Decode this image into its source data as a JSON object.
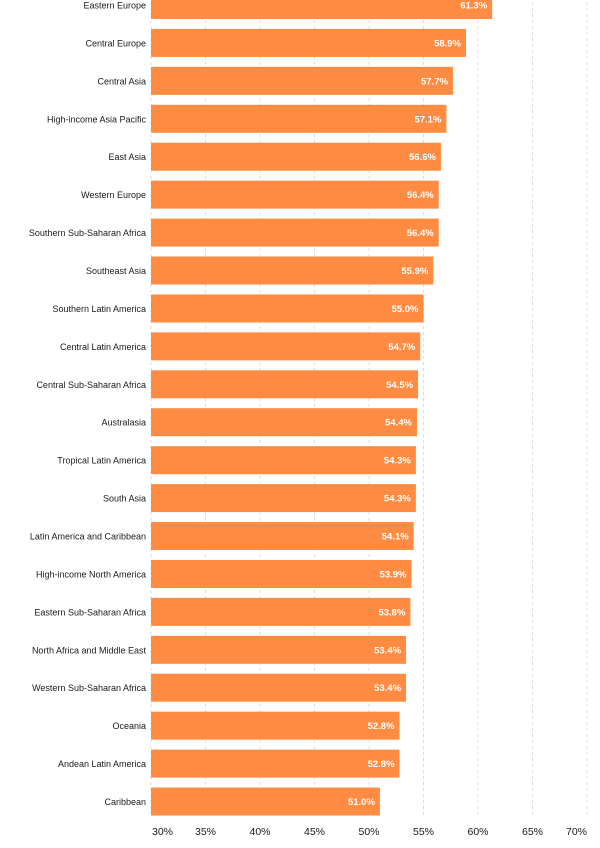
{
  "chart_data": {
    "type": "bar",
    "orientation": "horizontal",
    "categories": [
      "Eastern Europe",
      "Central Europe",
      "Central Asia",
      "High-income Asia Pacific",
      "East Asia",
      "Western Europe",
      "Southern Sub-Saharan Africa",
      "Southeast Asia",
      "Southern Latin America",
      "Central Latin America",
      "Central Sub-Saharan Africa",
      "Australasia",
      "Tropical Latin America",
      "South Asia",
      "Latin America and Caribbean",
      "High-income North America",
      "Eastern Sub-Saharan Africa",
      "North Africa and Middle East",
      "Western Sub-Saharan Africa",
      "Oceania",
      "Andean Latin America",
      "Caribbean"
    ],
    "values": [
      61.3,
      58.9,
      57.7,
      57.1,
      56.6,
      56.4,
      56.4,
      55.9,
      55.0,
      54.7,
      54.5,
      54.4,
      54.3,
      54.3,
      54.1,
      53.9,
      53.8,
      53.4,
      53.4,
      52.8,
      52.8,
      51.0
    ],
    "value_labels": [
      "61.3%",
      "58.9%",
      "57.7%",
      "57.1%",
      "56.6%",
      "56.4%",
      "56.4%",
      "55.9%",
      "55.0%",
      "54.7%",
      "54.5%",
      "54.4%",
      "54.3%",
      "54.3%",
      "54.1%",
      "53.9%",
      "53.8%",
      "53.4%",
      "53.4%",
      "52.8%",
      "52.8%",
      "51.0%"
    ],
    "x_ticks": [
      30,
      35,
      40,
      45,
      50,
      55,
      60,
      65,
      70
    ],
    "x_tick_labels": [
      "30%",
      "35%",
      "40%",
      "45%",
      "50%",
      "55%",
      "60%",
      "65%",
      "70%"
    ],
    "xlim": [
      30,
      70
    ],
    "xlabel": "",
    "grid": true,
    "bar_color": "#ff8c42"
  }
}
